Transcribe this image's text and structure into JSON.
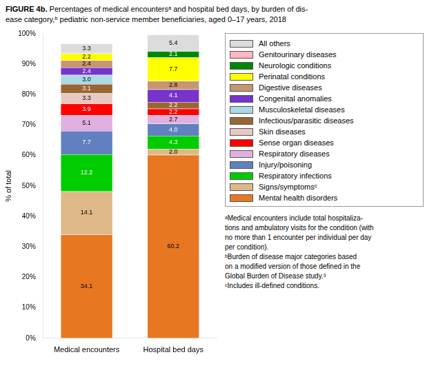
{
  "chart_data": {
    "type": "bar",
    "stacked": true,
    "title": "FIGURE 4b.",
    "subtitle": "Percentages of medical encountersᵃ and hospital bed days, by burden of dis-\nease category,ᵇ pediatric non-service member beneficiaries, aged 0–17 years, 2018",
    "categories": [
      "Medical encounters",
      "Hospital bed days"
    ],
    "series": [
      {
        "name": "Mental health disorders",
        "color": "#E87722",
        "values": [
          34.1,
          60.2
        ],
        "value_labels": [
          "34.1",
          "60.2"
        ]
      },
      {
        "name": "Signs/symptomsᶜ",
        "color": "#DEB887",
        "values": [
          14.1,
          2.0
        ],
        "value_labels": [
          "14.1",
          "2.0"
        ]
      },
      {
        "name": "Respiratory infections",
        "color": "#00CC00",
        "values": [
          12.2,
          4.3
        ],
        "value_labels": [
          "12.2",
          "4.3"
        ]
      },
      {
        "name": "Injury/poisoning",
        "color": "#6080C0",
        "values": [
          7.7,
          4.0
        ],
        "value_labels": [
          "7.7",
          "4.0"
        ]
      },
      {
        "name": "Respiratory diseases",
        "color": "#E0B0E0",
        "values": [
          5.1,
          2.7
        ],
        "value_labels": [
          "5.1",
          "2.7"
        ]
      },
      {
        "name": "Sense organ diseases",
        "color": "#FF0000",
        "values": [
          3.9,
          2.2
        ],
        "value_labels": [
          "3.9",
          "2.2"
        ]
      },
      {
        "name": "Skin diseases",
        "color": "#E8C8C0",
        "values": [
          3.3,
          0.0
        ],
        "value_labels": [
          "3.3",
          null
        ]
      },
      {
        "name": "Infectious/parasitic diseases",
        "color": "#996633",
        "values": [
          3.1,
          2.2
        ],
        "value_labels": [
          "3.1",
          "2.2"
        ]
      },
      {
        "name": "Musculoskeletal diseases",
        "color": "#ADD8E6",
        "values": [
          3.0,
          0.0
        ],
        "value_labels": [
          "3.0",
          null
        ]
      },
      {
        "name": "Congenital anomalies",
        "color": "#7733CC",
        "values": [
          2.4,
          4.1
        ],
        "value_labels": [
          "2.4",
          "4.1"
        ]
      },
      {
        "name": "Digestive diseases",
        "color": "#C8966E",
        "values": [
          2.4,
          2.8
        ],
        "value_labels": [
          "2.4",
          "2.8"
        ]
      },
      {
        "name": "Perinatal conditions",
        "color": "#FFFF00",
        "values": [
          2.2,
          7.7
        ],
        "value_labels": [
          "2.2",
          "7.7"
        ]
      },
      {
        "name": "Neurologic conditions",
        "color": "#008800",
        "values": [
          0.0,
          2.1
        ],
        "value_labels": [
          null,
          "2.1"
        ]
      },
      {
        "name": "Genitourinary diseases",
        "color": "#FFB6C1",
        "values": [
          0.0,
          0.0
        ],
        "value_labels": [
          null,
          null
        ]
      },
      {
        "name": "All others",
        "color": "#DCDCDC",
        "values": [
          3.3,
          5.4
        ],
        "value_labels": [
          "3.3",
          "5.4"
        ]
      }
    ],
    "ylabel": "% of total",
    "ylim": [
      0,
      100
    ],
    "yticks": [
      {
        "value": 0,
        "label": "0%"
      },
      {
        "value": 10,
        "label": "10%"
      },
      {
        "value": 20,
        "label": "20%"
      },
      {
        "value": 30,
        "label": "30%"
      },
      {
        "value": 40,
        "label": "40%"
      },
      {
        "value": 50,
        "label": "50%"
      },
      {
        "value": 60,
        "label": "60%"
      },
      {
        "value": 70,
        "label": "70%"
      },
      {
        "value": 80,
        "label": "80%"
      },
      {
        "value": 90,
        "label": "90%"
      },
      {
        "value": 100,
        "label": "100%"
      }
    ],
    "grid": false,
    "legend": "right",
    "data_labels": true,
    "annotations": [
      "ᵃMedical encounters include total hospitaliza-\ntions and ambulatory visits for the condition (with\nno more than 1 encounter per individual per day\nper condition).\nᵇBurden of disease major categories based\non a modified version of those defined in the\nGlobal Burden of Disease study.³\nᶜIncludes ill-defined conditions."
    ]
  }
}
